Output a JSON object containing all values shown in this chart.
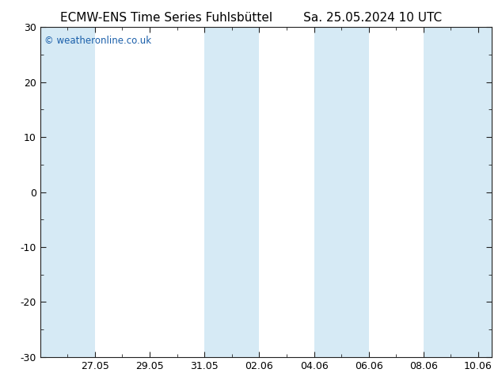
{
  "title_left": "ECMW-ENS Time Series Fuhlsbüttel",
  "title_right": "Sa. 25.05.2024 10 UTC",
  "ylim": [
    -30,
    30
  ],
  "yticks": [
    -30,
    -20,
    -10,
    0,
    10,
    20,
    30
  ],
  "xlim": [
    0,
    16.5
  ],
  "xtick_labels": [
    "27.05",
    "29.05",
    "31.05",
    "02.06",
    "04.06",
    "06.06",
    "08.06",
    "10.06"
  ],
  "xtick_positions": [
    2,
    4,
    6,
    8,
    10,
    12,
    14,
    16
  ],
  "shaded_bands": [
    [
      0,
      2
    ],
    [
      6,
      8
    ],
    [
      10,
      12
    ],
    [
      14,
      16
    ],
    [
      16,
      16.5
    ]
  ],
  "shade_color": "#d6eaf5",
  "bg_color": "#ffffff",
  "watermark": "© weatheronline.co.uk",
  "watermark_color": "#1a5faa",
  "title_fontsize": 11,
  "tick_fontsize": 9,
  "watermark_fontsize": 8.5,
  "spine_color": "#222222"
}
